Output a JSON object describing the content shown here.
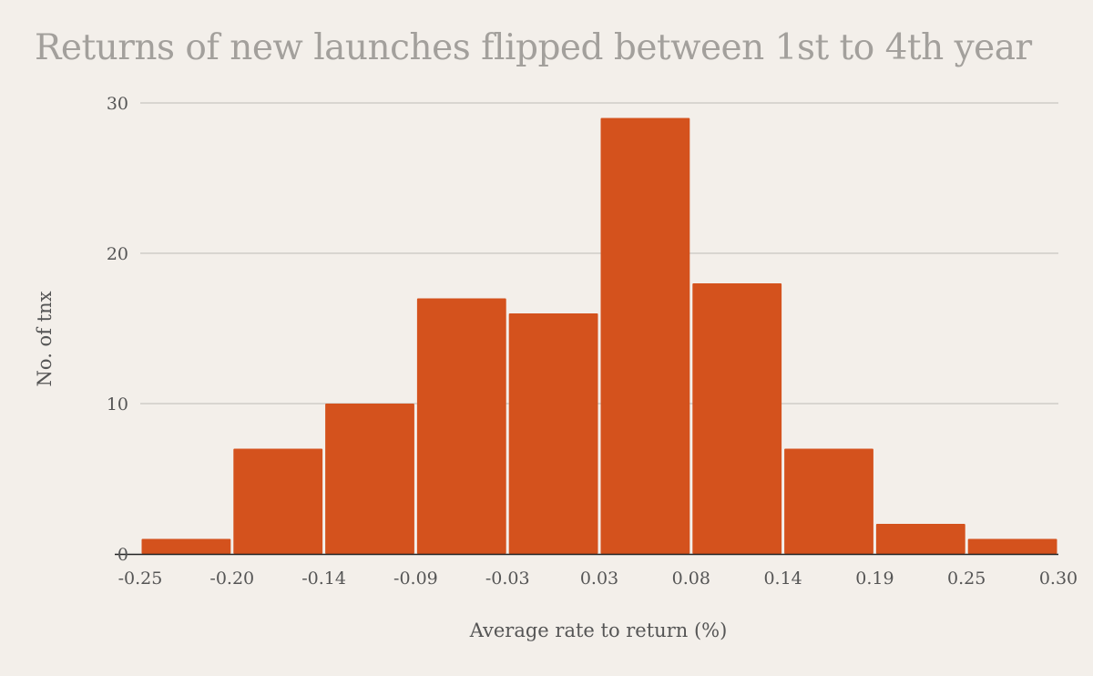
{
  "chart_data": {
    "type": "bar",
    "title": "Returns of new launches flipped between 1st to 4th year",
    "xlabel": "Average rate to return (%)",
    "ylabel": "No. of tnx",
    "bin_edges": [
      "-0.25",
      "-0.20",
      "-0.14",
      "-0.09",
      "-0.03",
      "0.03",
      "0.08",
      "0.14",
      "0.19",
      "0.25",
      "0.30"
    ],
    "values": [
      1,
      7,
      10,
      17,
      16,
      29,
      18,
      7,
      2,
      1
    ],
    "yticks": [
      0,
      10,
      20,
      30
    ],
    "ylim": [
      0,
      30
    ],
    "grid": true,
    "legend": "none",
    "bar_color": "#d4521d",
    "grid_color": "#c8c5c1",
    "axis_color": "#222222",
    "title_color": "#a3a09c"
  }
}
